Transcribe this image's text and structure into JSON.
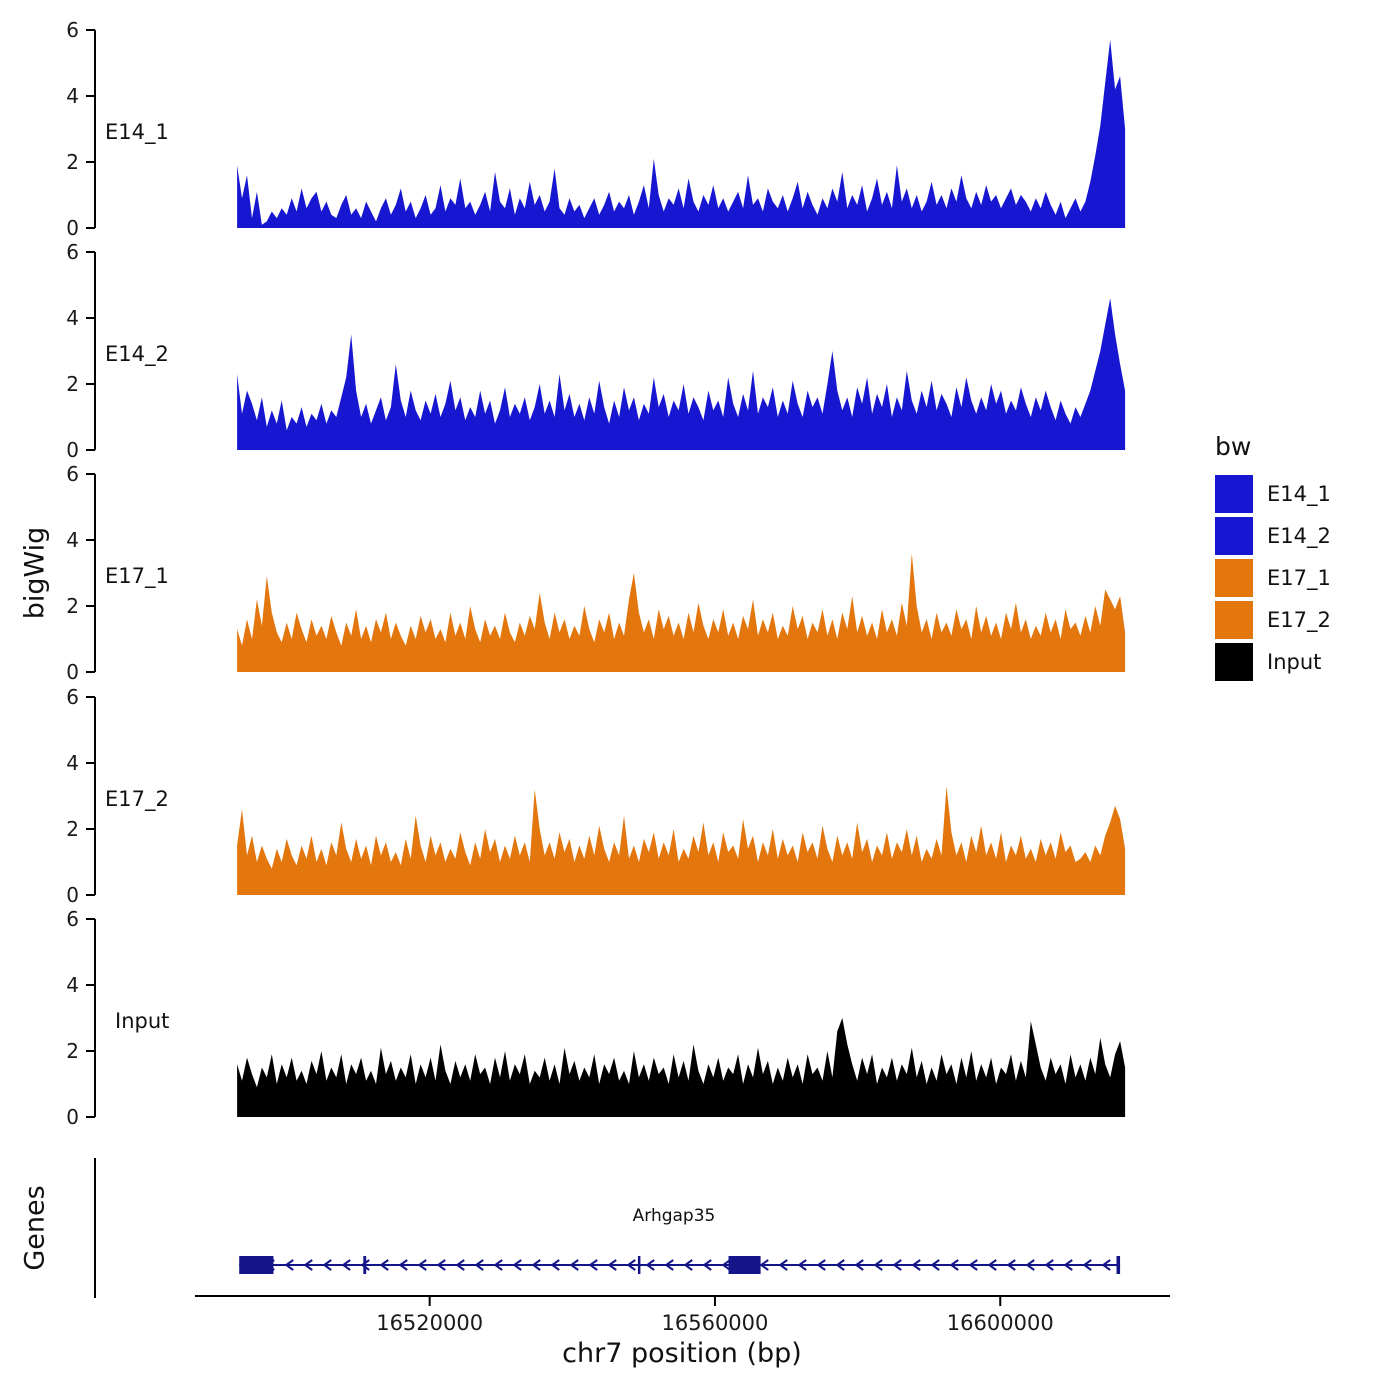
{
  "figure": {
    "y_axis_title": "bigWig",
    "x_axis_title": "chr7 position (bp)",
    "genes_axis_title": "Genes",
    "gene_label": "Arhgap35"
  },
  "legend": {
    "title": "bw",
    "entries": [
      {
        "label": "E14_1",
        "color": "#1717d2"
      },
      {
        "label": "E14_2",
        "color": "#1717d2"
      },
      {
        "label": "E17_1",
        "color": "#e3770e"
      },
      {
        "label": "E17_2",
        "color": "#e3770e"
      },
      {
        "label": "Input",
        "color": "#000000"
      }
    ]
  },
  "chart_data": {
    "type": "area",
    "title": "",
    "xlabel": "chr7 position (bp)",
    "ylabel": "bigWig",
    "ylim": [
      0,
      6
    ],
    "y_ticks": [
      0,
      2,
      4,
      6
    ],
    "x_range_bp": [
      16493000,
      16617500
    ],
    "axis_range_bp": [
      16487100,
      16623800
    ],
    "x_ticks": [
      {
        "value": 16520000,
        "label": "16520000"
      },
      {
        "value": 16560000,
        "label": "16560000"
      },
      {
        "value": 16600000,
        "label": "16600000"
      }
    ],
    "tracks": [
      {
        "name": "E14_1",
        "color": "#1717d2",
        "values": [
          1.9,
          0.9,
          1.6,
          0.3,
          1.1,
          0.1,
          0.2,
          0.5,
          0.3,
          0.6,
          0.4,
          0.9,
          0.5,
          1.2,
          0.6,
          0.9,
          1.1,
          0.5,
          0.8,
          0.4,
          0.3,
          0.7,
          1.0,
          0.4,
          0.6,
          0.3,
          0.8,
          0.5,
          0.2,
          0.6,
          0.9,
          0.4,
          0.7,
          1.2,
          0.5,
          0.8,
          0.3,
          0.6,
          1.0,
          0.4,
          0.6,
          1.3,
          0.5,
          0.9,
          0.7,
          1.5,
          0.6,
          0.8,
          0.4,
          0.7,
          1.1,
          0.5,
          1.7,
          0.8,
          0.6,
          1.2,
          0.4,
          0.9,
          0.6,
          1.4,
          0.7,
          1.0,
          0.5,
          0.8,
          1.8,
          0.6,
          0.4,
          0.9,
          0.5,
          0.7,
          0.3,
          0.6,
          0.9,
          0.4,
          0.7,
          1.1,
          0.5,
          0.8,
          0.6,
          1.0,
          0.4,
          0.8,
          1.3,
          0.6,
          2.1,
          1.0,
          0.5,
          0.9,
          0.7,
          1.2,
          0.6,
          1.5,
          0.8,
          0.5,
          1.0,
          0.7,
          1.3,
          0.6,
          0.9,
          0.5,
          0.8,
          1.1,
          0.6,
          1.6,
          0.7,
          0.9,
          0.5,
          1.2,
          0.8,
          0.6,
          1.0,
          0.5,
          0.9,
          1.4,
          0.6,
          1.1,
          0.7,
          0.4,
          0.9,
          0.6,
          1.2,
          0.8,
          1.7,
          0.6,
          1.0,
          0.7,
          1.3,
          0.5,
          0.9,
          1.5,
          0.7,
          1.1,
          0.6,
          1.9,
          0.8,
          1.2,
          0.6,
          1.0,
          0.5,
          0.8,
          1.4,
          0.7,
          1.0,
          0.6,
          1.2,
          0.8,
          1.6,
          0.9,
          0.6,
          1.1,
          0.7,
          1.3,
          0.8,
          1.0,
          0.6,
          0.9,
          1.2,
          0.7,
          1.0,
          0.8,
          0.5,
          0.9,
          0.6,
          1.1,
          0.7,
          0.4,
          0.8,
          0.3,
          0.6,
          0.9,
          0.5,
          0.8,
          1.4,
          2.2,
          3.1,
          4.4,
          5.7,
          4.2,
          4.6,
          3.0
        ]
      },
      {
        "name": "E14_2",
        "color": "#1717d2",
        "values": [
          2.3,
          1.1,
          1.8,
          1.4,
          0.9,
          1.6,
          0.7,
          1.2,
          0.8,
          1.5,
          0.6,
          1.0,
          0.8,
          1.3,
          0.7,
          1.1,
          0.9,
          1.4,
          0.8,
          1.2,
          1.0,
          1.6,
          2.2,
          3.5,
          1.8,
          1.0,
          1.4,
          0.8,
          1.2,
          1.6,
          0.9,
          1.3,
          2.6,
          1.5,
          1.0,
          1.8,
          1.2,
          0.9,
          1.5,
          1.1,
          1.7,
          1.0,
          1.4,
          2.1,
          1.2,
          1.6,
          0.9,
          1.3,
          1.0,
          1.8,
          1.1,
          1.5,
          0.8,
          1.2,
          1.9,
          1.0,
          1.4,
          1.1,
          1.6,
          0.9,
          1.3,
          2.0,
          1.1,
          1.5,
          1.0,
          2.3,
          1.2,
          1.7,
          1.0,
          1.4,
          0.9,
          1.6,
          1.1,
          2.1,
          1.3,
          0.8,
          1.5,
          1.0,
          1.9,
          1.2,
          1.6,
          0.9,
          1.4,
          1.1,
          2.2,
          1.3,
          1.7,
          1.0,
          1.5,
          1.2,
          2.0,
          1.1,
          1.6,
          1.3,
          0.9,
          1.8,
          1.2,
          1.5,
          1.0,
          2.2,
          1.4,
          1.0,
          1.7,
          1.2,
          2.4,
          1.1,
          1.6,
          1.3,
          1.9,
          1.0,
          1.5,
          1.1,
          2.1,
          1.4,
          1.0,
          1.8,
          1.3,
          1.6,
          1.1,
          2.0,
          3.0,
          1.8,
          1.2,
          1.6,
          1.0,
          1.9,
          1.4,
          2.2,
          1.1,
          1.7,
          1.3,
          2.0,
          1.0,
          1.6,
          1.2,
          2.4,
          1.5,
          1.1,
          1.8,
          1.3,
          2.1,
          1.2,
          1.7,
          1.4,
          1.0,
          1.9,
          1.3,
          2.2,
          1.5,
          1.1,
          1.6,
          1.2,
          2.0,
          1.4,
          1.8,
          1.1,
          1.5,
          1.2,
          1.9,
          1.4,
          1.0,
          1.6,
          1.2,
          1.8,
          1.3,
          0.9,
          1.5,
          1.1,
          0.8,
          1.3,
          1.0,
          1.4,
          1.8,
          2.4,
          3.0,
          3.8,
          4.6,
          3.5,
          2.6,
          1.8
        ]
      },
      {
        "name": "E17_1",
        "color": "#e3770e",
        "values": [
          1.3,
          0.8,
          1.6,
          1.0,
          2.2,
          1.4,
          2.9,
          1.8,
          1.2,
          0.9,
          1.5,
          1.0,
          1.8,
          1.3,
          0.9,
          1.6,
          1.1,
          1.4,
          1.0,
          1.7,
          1.2,
          0.8,
          1.5,
          1.1,
          1.9,
          1.0,
          1.4,
          0.9,
          1.6,
          1.2,
          1.8,
          1.0,
          1.5,
          1.1,
          0.8,
          1.4,
          1.0,
          1.7,
          1.2,
          1.6,
          1.0,
          1.3,
          0.9,
          1.8,
          1.1,
          1.5,
          1.0,
          2.0,
          1.3,
          0.9,
          1.6,
          1.1,
          1.4,
          1.0,
          1.8,
          1.2,
          0.9,
          1.5,
          1.1,
          1.7,
          1.3,
          2.4,
          1.5,
          1.0,
          1.8,
          1.2,
          1.6,
          1.0,
          1.4,
          1.1,
          2.0,
          1.3,
          0.9,
          1.6,
          1.2,
          1.8,
          1.0,
          1.5,
          1.1,
          2.2,
          3.0,
          1.8,
          1.2,
          1.6,
          1.0,
          1.9,
          1.3,
          1.7,
          1.1,
          1.5,
          1.0,
          1.8,
          1.2,
          2.1,
          1.4,
          1.0,
          1.6,
          1.2,
          1.9,
          1.1,
          1.5,
          1.0,
          1.7,
          1.3,
          2.2,
          1.1,
          1.6,
          1.2,
          1.8,
          1.0,
          1.4,
          1.1,
          2.0,
          1.3,
          1.7,
          1.0,
          1.5,
          1.2,
          1.9,
          1.1,
          1.6,
          1.0,
          1.8,
          1.3,
          2.3,
          1.2,
          1.7,
          1.1,
          1.5,
          1.0,
          1.9,
          1.2,
          1.6,
          1.1,
          2.1,
          1.4,
          3.6,
          2.0,
          1.2,
          1.6,
          1.0,
          1.8,
          1.2,
          1.5,
          1.1,
          1.9,
          1.3,
          1.6,
          1.0,
          2.0,
          1.2,
          1.7,
          1.1,
          1.5,
          1.0,
          1.8,
          1.3,
          2.1,
          1.2,
          1.6,
          1.0,
          1.4,
          1.1,
          1.8,
          1.2,
          1.6,
          1.0,
          1.9,
          1.3,
          1.5,
          1.1,
          1.7,
          1.2,
          2.0,
          1.4,
          2.5,
          2.2,
          1.9,
          2.3,
          1.2
        ]
      },
      {
        "name": "E17_2",
        "color": "#e3770e",
        "values": [
          1.5,
          2.6,
          1.2,
          1.8,
          1.0,
          1.5,
          1.1,
          0.8,
          1.4,
          1.0,
          1.7,
          1.2,
          0.9,
          1.5,
          1.1,
          1.8,
          1.0,
          1.4,
          0.9,
          1.6,
          1.2,
          2.2,
          1.4,
          1.0,
          1.7,
          1.1,
          1.5,
          0.9,
          1.8,
          1.2,
          1.6,
          1.0,
          1.3,
          0.9,
          1.7,
          1.1,
          2.4,
          1.5,
          1.0,
          1.8,
          1.2,
          1.6,
          1.0,
          1.4,
          1.1,
          1.9,
          1.3,
          0.9,
          1.6,
          1.1,
          2.0,
          1.3,
          1.7,
          1.0,
          1.5,
          1.1,
          1.8,
          1.2,
          1.6,
          1.0,
          3.2,
          2.0,
          1.2,
          1.6,
          1.1,
          1.9,
          1.3,
          1.7,
          1.0,
          1.5,
          1.1,
          1.8,
          1.2,
          2.1,
          1.4,
          1.0,
          1.6,
          1.2,
          2.4,
          1.1,
          1.5,
          1.0,
          1.7,
          1.3,
          1.9,
          1.1,
          1.6,
          1.2,
          2.0,
          1.0,
          1.4,
          1.1,
          1.8,
          1.3,
          2.2,
          1.2,
          1.6,
          1.0,
          1.9,
          1.3,
          1.5,
          1.1,
          2.3,
          1.4,
          1.8,
          1.0,
          1.6,
          1.2,
          2.0,
          1.1,
          1.7,
          1.2,
          1.5,
          1.0,
          1.9,
          1.3,
          1.6,
          1.1,
          2.1,
          1.4,
          1.0,
          1.8,
          1.2,
          1.6,
          1.1,
          2.2,
          1.3,
          1.7,
          1.0,
          1.5,
          1.2,
          1.9,
          1.1,
          1.6,
          1.3,
          2.0,
          1.2,
          1.8,
          1.0,
          1.4,
          1.1,
          1.7,
          1.2,
          3.3,
          1.9,
          1.2,
          1.6,
          1.0,
          1.8,
          1.3,
          2.1,
          1.2,
          1.6,
          1.1,
          1.9,
          1.0,
          1.5,
          1.2,
          1.8,
          1.1,
          1.4,
          1.0,
          1.7,
          1.2,
          1.6,
          1.1,
          1.9,
          1.3,
          1.5,
          1.0,
          1.1,
          1.3,
          1.0,
          1.5,
          1.2,
          1.8,
          2.2,
          2.7,
          2.3,
          1.4
        ]
      },
      {
        "name": "Input",
        "color": "#000000",
        "values": [
          1.6,
          1.1,
          1.8,
          1.3,
          0.9,
          1.5,
          1.2,
          1.9,
          1.0,
          1.6,
          1.2,
          1.8,
          1.1,
          1.4,
          1.0,
          1.7,
          1.3,
          2.0,
          1.1,
          1.5,
          1.2,
          1.9,
          1.0,
          1.6,
          1.3,
          1.8,
          1.1,
          1.4,
          1.0,
          2.1,
          1.3,
          1.7,
          1.1,
          1.5,
          1.2,
          1.9,
          1.0,
          1.6,
          1.2,
          1.8,
          1.1,
          2.2,
          1.4,
          1.0,
          1.7,
          1.2,
          1.6,
          1.1,
          1.9,
          1.3,
          1.5,
          1.0,
          1.8,
          1.2,
          2.0,
          1.1,
          1.6,
          1.3,
          1.9,
          1.0,
          1.4,
          1.2,
          1.8,
          1.1,
          1.6,
          1.0,
          2.1,
          1.3,
          1.7,
          1.1,
          1.5,
          1.2,
          1.9,
          1.0,
          1.6,
          1.3,
          1.8,
          1.1,
          1.4,
          1.0,
          2.0,
          1.2,
          1.6,
          1.1,
          1.8,
          1.3,
          1.5,
          1.0,
          1.9,
          1.2,
          1.7,
          1.1,
          2.2,
          1.4,
          1.0,
          1.6,
          1.2,
          1.8,
          1.1,
          1.5,
          1.3,
          1.9,
          1.0,
          1.6,
          1.2,
          2.1,
          1.3,
          1.7,
          1.0,
          1.5,
          1.1,
          1.8,
          1.2,
          1.6,
          1.0,
          1.9,
          1.3,
          1.5,
          1.1,
          2.0,
          1.2,
          2.6,
          3.0,
          2.2,
          1.6,
          1.1,
          1.8,
          1.3,
          1.9,
          1.0,
          1.5,
          1.2,
          1.8,
          1.1,
          1.6,
          1.3,
          2.1,
          1.2,
          1.7,
          1.0,
          1.5,
          1.1,
          1.9,
          1.3,
          1.6,
          1.0,
          1.8,
          1.2,
          2.0,
          1.1,
          1.6,
          1.2,
          1.8,
          1.0,
          1.5,
          1.3,
          1.9,
          1.1,
          1.7,
          1.2,
          2.9,
          2.2,
          1.5,
          1.1,
          1.8,
          1.3,
          1.6,
          1.0,
          1.9,
          1.2,
          1.6,
          1.1,
          1.8,
          1.3,
          2.4,
          1.6,
          1.2,
          1.9,
          2.3,
          1.5
        ]
      }
    ],
    "gene_track": {
      "label": "Genes",
      "gene": {
        "name": "Arhgap35",
        "strand": "-",
        "start": 16493300,
        "end": 16616800,
        "color": "#15158a",
        "exons": [
          [
            16493300,
            16498100
          ],
          [
            16510700,
            16511100
          ],
          [
            16549200,
            16549500
          ],
          [
            16561900,
            16566400
          ],
          [
            16616300,
            16616800
          ]
        ]
      }
    }
  }
}
